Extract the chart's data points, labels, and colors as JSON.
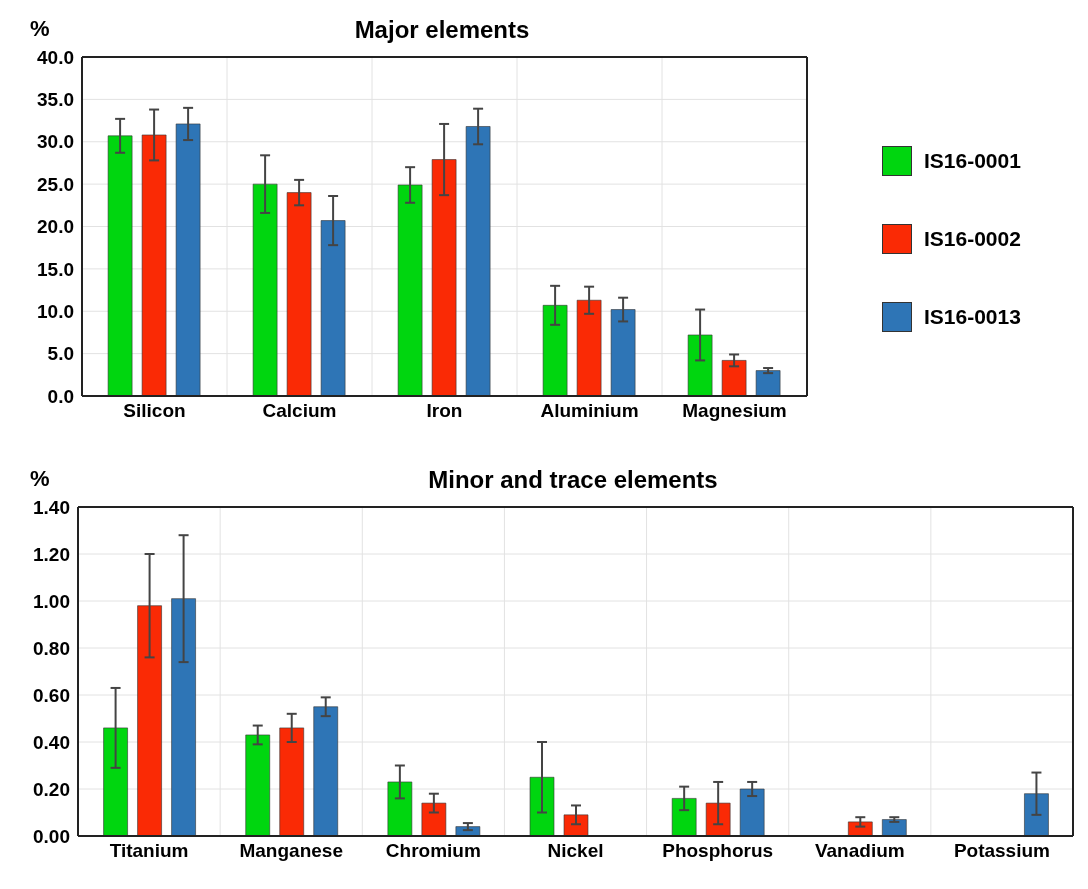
{
  "chart_data": [
    {
      "type": "bar",
      "title": "Major elements",
      "ylabel": "%",
      "categories": [
        "Silicon",
        "Calcium",
        "Iron",
        "Aluminium",
        "Magnesium"
      ],
      "series": [
        {
          "name": "IS16-0001",
          "color": "#00d60f",
          "values": [
            30.7,
            25.0,
            24.9,
            10.7,
            7.2
          ],
          "errors": [
            2.0,
            3.4,
            2.1,
            2.3,
            3.0
          ]
        },
        {
          "name": "IS16-0002",
          "color": "#fa2a05",
          "values": [
            30.8,
            24.0,
            27.9,
            11.3,
            4.2
          ],
          "errors": [
            3.0,
            1.5,
            4.2,
            1.6,
            0.7
          ]
        },
        {
          "name": "IS16-0013",
          "color": "#2e75b6",
          "values": [
            32.1,
            20.7,
            31.8,
            10.2,
            3.0
          ],
          "errors": [
            1.9,
            2.9,
            2.1,
            1.4,
            0.3
          ]
        }
      ],
      "ylim": [
        0,
        40
      ],
      "yticks": [
        {
          "value": 0,
          "label": "0.0"
        },
        {
          "value": 5,
          "label": "5.0"
        },
        {
          "value": 10,
          "label": "10.0"
        },
        {
          "value": 15,
          "label": "15.0"
        },
        {
          "value": 20,
          "label": "20.0"
        },
        {
          "value": 25,
          "label": "25.0"
        },
        {
          "value": 30,
          "label": "30.0"
        },
        {
          "value": 35,
          "label": "35.0"
        },
        {
          "value": 40,
          "label": "40.0"
        }
      ],
      "grid": true,
      "legend": "right"
    },
    {
      "type": "bar",
      "title": "Minor and trace elements",
      "ylabel": "%",
      "categories": [
        "Titanium",
        "Manganese",
        "Chromium",
        "Nickel",
        "Phosphorus",
        "Vanadium",
        "Potassium"
      ],
      "series": [
        {
          "color": "#00d60f",
          "values": [
            0.46,
            0.43,
            0.23,
            0.25,
            0.16,
            null,
            null
          ],
          "errors": [
            0.17,
            0.04,
            0.07,
            0.15,
            0.05,
            null,
            null
          ]
        },
        {
          "color": "#fa2a05",
          "values": [
            0.98,
            0.46,
            0.14,
            0.09,
            0.14,
            0.06,
            null
          ],
          "errors": [
            0.22,
            0.06,
            0.04,
            0.04,
            0.09,
            0.02,
            null
          ]
        },
        {
          "color": "#2e75b6",
          "values": [
            1.01,
            0.55,
            0.04,
            null,
            0.2,
            0.07,
            0.18
          ],
          "errors": [
            0.27,
            0.04,
            0.015,
            null,
            0.03,
            0.01,
            0.09
          ]
        }
      ],
      "ylim": [
        0,
        1.4
      ],
      "yticks": [
        {
          "value": 0,
          "label": "0.00"
        },
        {
          "value": 0.2,
          "label": "0.20"
        },
        {
          "value": 0.4,
          "label": "0.40"
        },
        {
          "value": 0.6,
          "label": "0.60"
        },
        {
          "value": 0.8,
          "label": "0.80"
        },
        {
          "value": 1.0,
          "label": "1.00"
        },
        {
          "value": 1.2,
          "label": "1.20"
        },
        {
          "value": 1.4,
          "label": "1.40"
        }
      ],
      "grid": true
    }
  ]
}
